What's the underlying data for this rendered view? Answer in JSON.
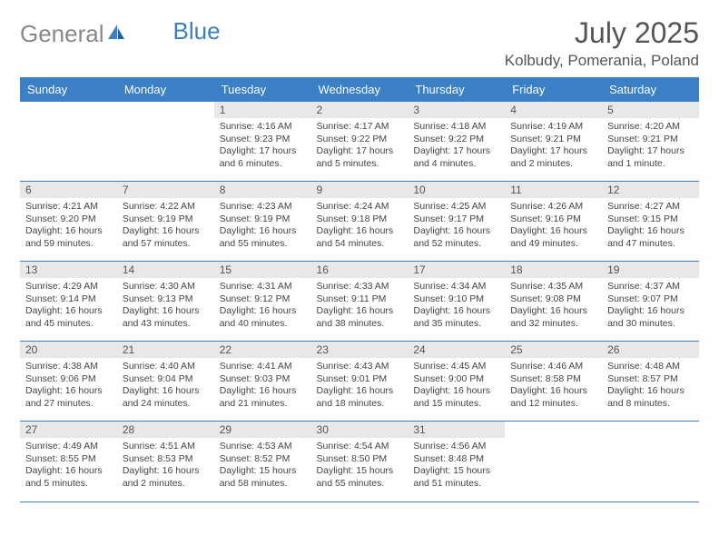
{
  "colors": {
    "header_bg": "#3b7fc4",
    "header_text": "#ffffff",
    "day_num_bg": "#e8e8e8",
    "body_text": "#444444",
    "title_text": "#555555",
    "logo_gray": "#888888",
    "logo_blue": "#3b7fc4",
    "background": "#ffffff"
  },
  "typography": {
    "month_title_size": 32,
    "location_size": 17,
    "header_size": 13,
    "day_num_size": 12,
    "body_size": 10.5,
    "logo_size": 26
  },
  "logo": {
    "part1": "General",
    "part2": "Blue"
  },
  "title": "July 2025",
  "location": "Kolbudy, Pomerania, Poland",
  "weekdays": [
    "Sunday",
    "Monday",
    "Tuesday",
    "Wednesday",
    "Thursday",
    "Friday",
    "Saturday"
  ],
  "grid": {
    "first_weekday_index": 2,
    "weeks": 5
  },
  "days": [
    {
      "n": "1",
      "sunrise": "4:16 AM",
      "sunset": "9:23 PM",
      "daylight": "17 hours and 6 minutes."
    },
    {
      "n": "2",
      "sunrise": "4:17 AM",
      "sunset": "9:22 PM",
      "daylight": "17 hours and 5 minutes."
    },
    {
      "n": "3",
      "sunrise": "4:18 AM",
      "sunset": "9:22 PM",
      "daylight": "17 hours and 4 minutes."
    },
    {
      "n": "4",
      "sunrise": "4:19 AM",
      "sunset": "9:21 PM",
      "daylight": "17 hours and 2 minutes."
    },
    {
      "n": "5",
      "sunrise": "4:20 AM",
      "sunset": "9:21 PM",
      "daylight": "17 hours and 1 minute."
    },
    {
      "n": "6",
      "sunrise": "4:21 AM",
      "sunset": "9:20 PM",
      "daylight": "16 hours and 59 minutes."
    },
    {
      "n": "7",
      "sunrise": "4:22 AM",
      "sunset": "9:19 PM",
      "daylight": "16 hours and 57 minutes."
    },
    {
      "n": "8",
      "sunrise": "4:23 AM",
      "sunset": "9:19 PM",
      "daylight": "16 hours and 55 minutes."
    },
    {
      "n": "9",
      "sunrise": "4:24 AM",
      "sunset": "9:18 PM",
      "daylight": "16 hours and 54 minutes."
    },
    {
      "n": "10",
      "sunrise": "4:25 AM",
      "sunset": "9:17 PM",
      "daylight": "16 hours and 52 minutes."
    },
    {
      "n": "11",
      "sunrise": "4:26 AM",
      "sunset": "9:16 PM",
      "daylight": "16 hours and 49 minutes."
    },
    {
      "n": "12",
      "sunrise": "4:27 AM",
      "sunset": "9:15 PM",
      "daylight": "16 hours and 47 minutes."
    },
    {
      "n": "13",
      "sunrise": "4:29 AM",
      "sunset": "9:14 PM",
      "daylight": "16 hours and 45 minutes."
    },
    {
      "n": "14",
      "sunrise": "4:30 AM",
      "sunset": "9:13 PM",
      "daylight": "16 hours and 43 minutes."
    },
    {
      "n": "15",
      "sunrise": "4:31 AM",
      "sunset": "9:12 PM",
      "daylight": "16 hours and 40 minutes."
    },
    {
      "n": "16",
      "sunrise": "4:33 AM",
      "sunset": "9:11 PM",
      "daylight": "16 hours and 38 minutes."
    },
    {
      "n": "17",
      "sunrise": "4:34 AM",
      "sunset": "9:10 PM",
      "daylight": "16 hours and 35 minutes."
    },
    {
      "n": "18",
      "sunrise": "4:35 AM",
      "sunset": "9:08 PM",
      "daylight": "16 hours and 32 minutes."
    },
    {
      "n": "19",
      "sunrise": "4:37 AM",
      "sunset": "9:07 PM",
      "daylight": "16 hours and 30 minutes."
    },
    {
      "n": "20",
      "sunrise": "4:38 AM",
      "sunset": "9:06 PM",
      "daylight": "16 hours and 27 minutes."
    },
    {
      "n": "21",
      "sunrise": "4:40 AM",
      "sunset": "9:04 PM",
      "daylight": "16 hours and 24 minutes."
    },
    {
      "n": "22",
      "sunrise": "4:41 AM",
      "sunset": "9:03 PM",
      "daylight": "16 hours and 21 minutes."
    },
    {
      "n": "23",
      "sunrise": "4:43 AM",
      "sunset": "9:01 PM",
      "daylight": "16 hours and 18 minutes."
    },
    {
      "n": "24",
      "sunrise": "4:45 AM",
      "sunset": "9:00 PM",
      "daylight": "16 hours and 15 minutes."
    },
    {
      "n": "25",
      "sunrise": "4:46 AM",
      "sunset": "8:58 PM",
      "daylight": "16 hours and 12 minutes."
    },
    {
      "n": "26",
      "sunrise": "4:48 AM",
      "sunset": "8:57 PM",
      "daylight": "16 hours and 8 minutes."
    },
    {
      "n": "27",
      "sunrise": "4:49 AM",
      "sunset": "8:55 PM",
      "daylight": "16 hours and 5 minutes."
    },
    {
      "n": "28",
      "sunrise": "4:51 AM",
      "sunset": "8:53 PM",
      "daylight": "16 hours and 2 minutes."
    },
    {
      "n": "29",
      "sunrise": "4:53 AM",
      "sunset": "8:52 PM",
      "daylight": "15 hours and 58 minutes."
    },
    {
      "n": "30",
      "sunrise": "4:54 AM",
      "sunset": "8:50 PM",
      "daylight": "15 hours and 55 minutes."
    },
    {
      "n": "31",
      "sunrise": "4:56 AM",
      "sunset": "8:48 PM",
      "daylight": "15 hours and 51 minutes."
    }
  ],
  "labels": {
    "sunrise": "Sunrise:",
    "sunset": "Sunset:",
    "daylight": "Daylight:"
  }
}
